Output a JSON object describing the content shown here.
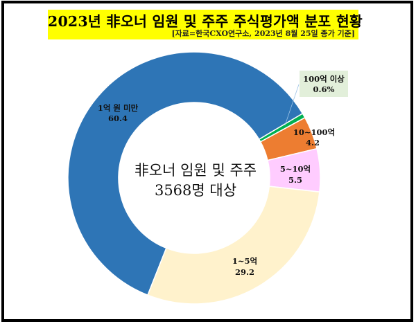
{
  "header": {
    "title": "2023년 非오너 임원 및 주주 주식평가액 분포 현황",
    "source": "[자료=한국CXO연구소, 2023년 8월 25일 종가 기준]"
  },
  "center_label": {
    "line1": "非오너 임원 및 주주",
    "line2": "3568명 대상"
  },
  "labels": {
    "under_1": {
      "name": "1억 원 미만",
      "value": "60.4"
    },
    "over_100": {
      "name": "100억 이상",
      "value": "0.6%"
    },
    "b10_100": {
      "name": "10~100억",
      "value": "4.2"
    },
    "b5_10": {
      "name": "5~10억",
      "value": "5.5"
    },
    "b1_5": {
      "name": "1~5억",
      "value": "29.2"
    }
  },
  "colors": {
    "under_1": "#2E75B6",
    "over_100": "#00B050",
    "b10_100": "#ED7D31",
    "b5_10": "#FFCCFF",
    "b1_5": "#FFF2CC",
    "title_bg": "#FFFF00",
    "callout_bg": "#E2EFDA"
  },
  "chart_data": {
    "type": "pie",
    "subtype": "donut",
    "title": "2023년 非오너 임원 및 주주 주식평가액 분포 현황",
    "subtitle": "[자료=한국CXO연구소, 2023년 8월 25일 종가 기준]",
    "center_text": "非오너 임원 및 주주 3568명 대상",
    "unit": "%",
    "categories": [
      "1억 원 미만",
      "100억 이상",
      "10~100억",
      "5~10억",
      "1~5억"
    ],
    "values": [
      60.4,
      0.6,
      4.2,
      5.5,
      29.2
    ],
    "colors": [
      "#2E75B6",
      "#00B050",
      "#ED7D31",
      "#FFCCFF",
      "#FFF2CC"
    ],
    "start_angle_deg": 201.6,
    "direction": "clockwise",
    "legend": "none (data labels on slices)"
  }
}
